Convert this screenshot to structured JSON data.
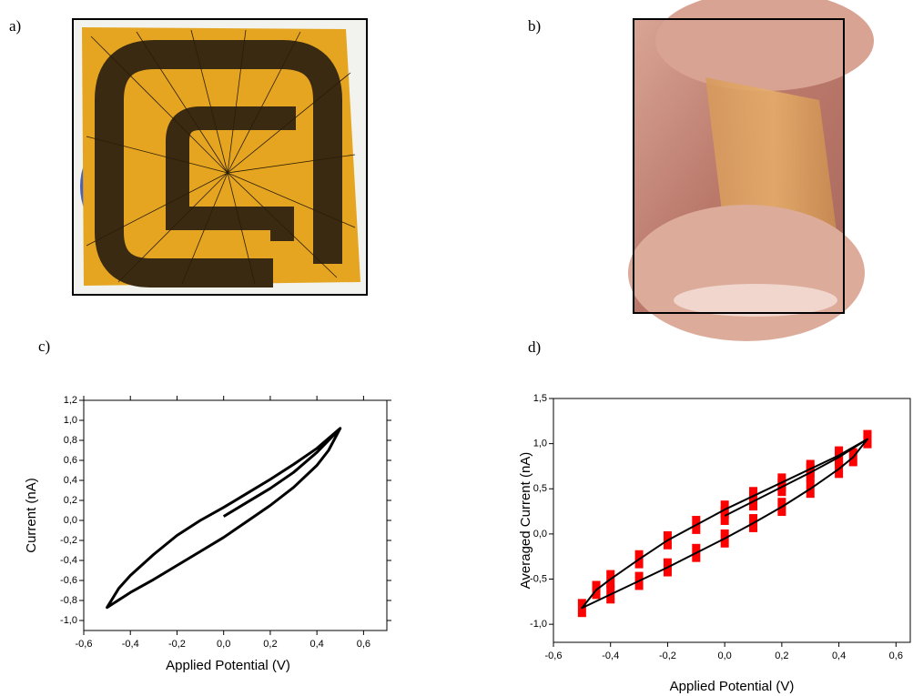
{
  "panel_labels": [
    "a)",
    "b)",
    "c)",
    "d)"
  ],
  "chart_data": [
    {
      "type": "line",
      "x_label": "Applied Potential (V)",
      "y_label": "Current (nA)",
      "color": "#000000",
      "mirror_ticks": true,
      "xlim": [
        -0.6,
        0.7
      ],
      "ylim": [
        -1.1,
        1.2
      ],
      "xticks": [
        {
          "value": -0.6,
          "label": "-0,6"
        },
        {
          "value": -0.4,
          "label": "-0,4"
        },
        {
          "value": -0.2,
          "label": "-0,2"
        },
        {
          "value": 0,
          "label": "0,0"
        },
        {
          "value": 0.2,
          "label": "0,2"
        },
        {
          "value": 0.4,
          "label": "0,4"
        },
        {
          "value": 0.6,
          "label": "0,6"
        }
      ],
      "yticks": [
        {
          "value": -1.0,
          "label": "-1,0"
        },
        {
          "value": -0.8,
          "label": "-0,8"
        },
        {
          "value": -0.6,
          "label": "-0,6"
        },
        {
          "value": -0.4,
          "label": "-0,4"
        },
        {
          "value": -0.2,
          "label": "-0,2"
        },
        {
          "value": 0,
          "label": "0,0"
        },
        {
          "value": 0.2,
          "label": "0,2"
        },
        {
          "value": 0.4,
          "label": "0,4"
        },
        {
          "value": 0.6,
          "label": "0,6"
        },
        {
          "value": 0.8,
          "label": "0,8"
        },
        {
          "value": 1.0,
          "label": "1,0"
        },
        {
          "value": 1.2,
          "label": "1,2"
        }
      ],
      "x": [
        0.0,
        0.1,
        0.2,
        0.3,
        0.4,
        0.5,
        0.45,
        0.4,
        0.3,
        0.2,
        0.1,
        0.0,
        -0.1,
        -0.2,
        -0.3,
        -0.4,
        -0.5,
        -0.45,
        -0.4,
        -0.3,
        -0.2,
        -0.1,
        0.0,
        0.1,
        0.2,
        0.3,
        0.4,
        0.5
      ],
      "values": [
        0.04,
        0.18,
        0.32,
        0.48,
        0.68,
        0.92,
        0.7,
        0.55,
        0.33,
        0.15,
        -0.01,
        -0.17,
        -0.31,
        -0.45,
        -0.59,
        -0.72,
        -0.87,
        -0.68,
        -0.55,
        -0.34,
        -0.15,
        0.0,
        0.13,
        0.27,
        0.41,
        0.56,
        0.72,
        0.92
      ]
    },
    {
      "type": "line",
      "x_label": "Applied Potential (V)",
      "y_label": "Averaged Current (nA)",
      "color": "#000000",
      "error_color": "#ff0000",
      "mirror_ticks": false,
      "xlim": [
        -0.6,
        0.65
      ],
      "ylim": [
        -1.2,
        1.5
      ],
      "xticks": [
        {
          "value": -0.6,
          "label": "-0,6"
        },
        {
          "value": -0.4,
          "label": "-0,4"
        },
        {
          "value": -0.2,
          "label": "-0,2"
        },
        {
          "value": 0,
          "label": "0,0"
        },
        {
          "value": 0.2,
          "label": "0,2"
        },
        {
          "value": 0.4,
          "label": "0,4"
        },
        {
          "value": 0.6,
          "label": "0,6"
        }
      ],
      "yticks": [
        {
          "value": -1.0,
          "label": "-1,0"
        },
        {
          "value": -0.5,
          "label": "-0,5"
        },
        {
          "value": 0,
          "label": "0,0"
        },
        {
          "value": 0.5,
          "label": "0,5"
        },
        {
          "value": 1.0,
          "label": "1,0"
        },
        {
          "value": 1.5,
          "label": "1,5"
        }
      ],
      "x": [
        0.0,
        0.1,
        0.2,
        0.3,
        0.4,
        0.5,
        0.45,
        0.4,
        0.3,
        0.2,
        0.1,
        0.0,
        -0.1,
        -0.2,
        -0.3,
        -0.4,
        -0.5,
        -0.45,
        -0.4,
        -0.3,
        -0.2,
        -0.1,
        0.0,
        0.1,
        0.2,
        0.3,
        0.4,
        0.5
      ],
      "values": [
        0.2,
        0.36,
        0.52,
        0.68,
        0.85,
        1.05,
        0.85,
        0.72,
        0.5,
        0.3,
        0.12,
        -0.05,
        -0.21,
        -0.37,
        -0.52,
        -0.67,
        -0.82,
        -0.62,
        -0.5,
        -0.28,
        -0.07,
        0.1,
        0.27,
        0.42,
        0.57,
        0.72,
        0.87,
        1.05
      ],
      "errors": [
        0.1,
        0.1,
        0.1,
        0.1,
        0.1,
        0.1,
        0.1,
        0.1,
        0.1,
        0.1,
        0.1,
        0.1,
        0.1,
        0.1,
        0.1,
        0.1,
        0.1,
        0.1,
        0.1,
        0.1,
        0.1,
        0.1,
        0.1,
        0.1,
        0.1,
        0.1,
        0.1,
        0.1
      ]
    }
  ]
}
